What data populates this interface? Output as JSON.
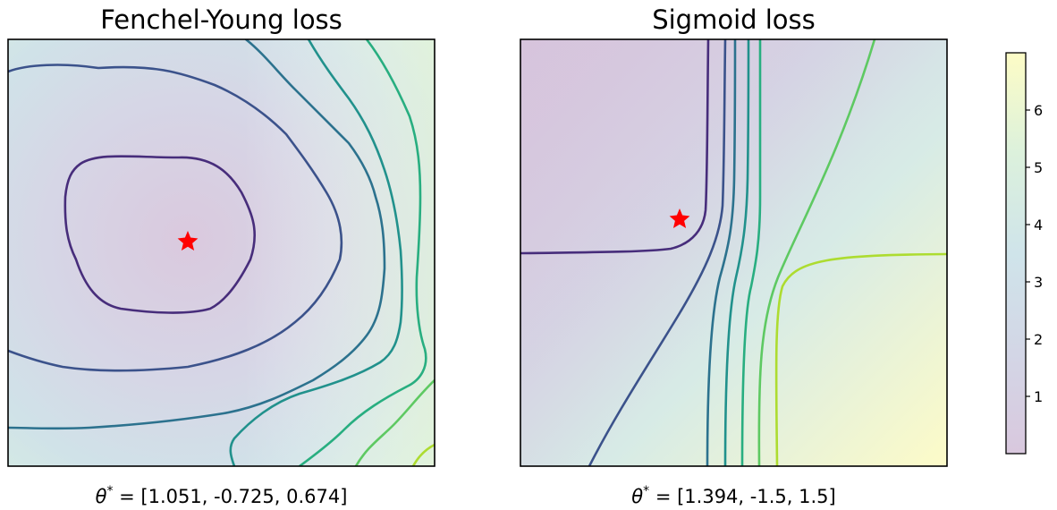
{
  "chart_data": [
    {
      "type": "heatmap",
      "title": "Fenchel-Young loss",
      "caption": "θ* = [1.051, -0.725,  0.674]",
      "caption_theta": "θ",
      "caption_sup": "*",
      "caption_rest": " = [1.051, -0.725,  0.674]",
      "minimum_marker": {
        "symbol": "star",
        "color": "#ff0000"
      },
      "axes": {
        "ticks": "none",
        "grid": false
      },
      "contour_levels": [
        1,
        2,
        3,
        4,
        5,
        6
      ]
    },
    {
      "type": "heatmap",
      "title": "Sigmoid loss",
      "caption": "θ* = [1.394, -1.5,  1.5]",
      "caption_theta": "θ",
      "caption_sup": "*",
      "caption_rest": " = [1.394, -1.5,  1.5]",
      "minimum_marker": {
        "symbol": "star",
        "color": "#ff0000"
      },
      "axes": {
        "ticks": "none",
        "grid": false
      },
      "contour_levels": [
        1,
        2,
        3,
        4,
        5,
        6
      ]
    }
  ],
  "colorbar": {
    "colormap": "viridis",
    "range": [
      0,
      7
    ],
    "ticks": [
      1,
      2,
      3,
      4,
      5,
      6
    ],
    "tick_labels": [
      "1",
      "2",
      "3",
      "4",
      "5",
      "6"
    ]
  }
}
